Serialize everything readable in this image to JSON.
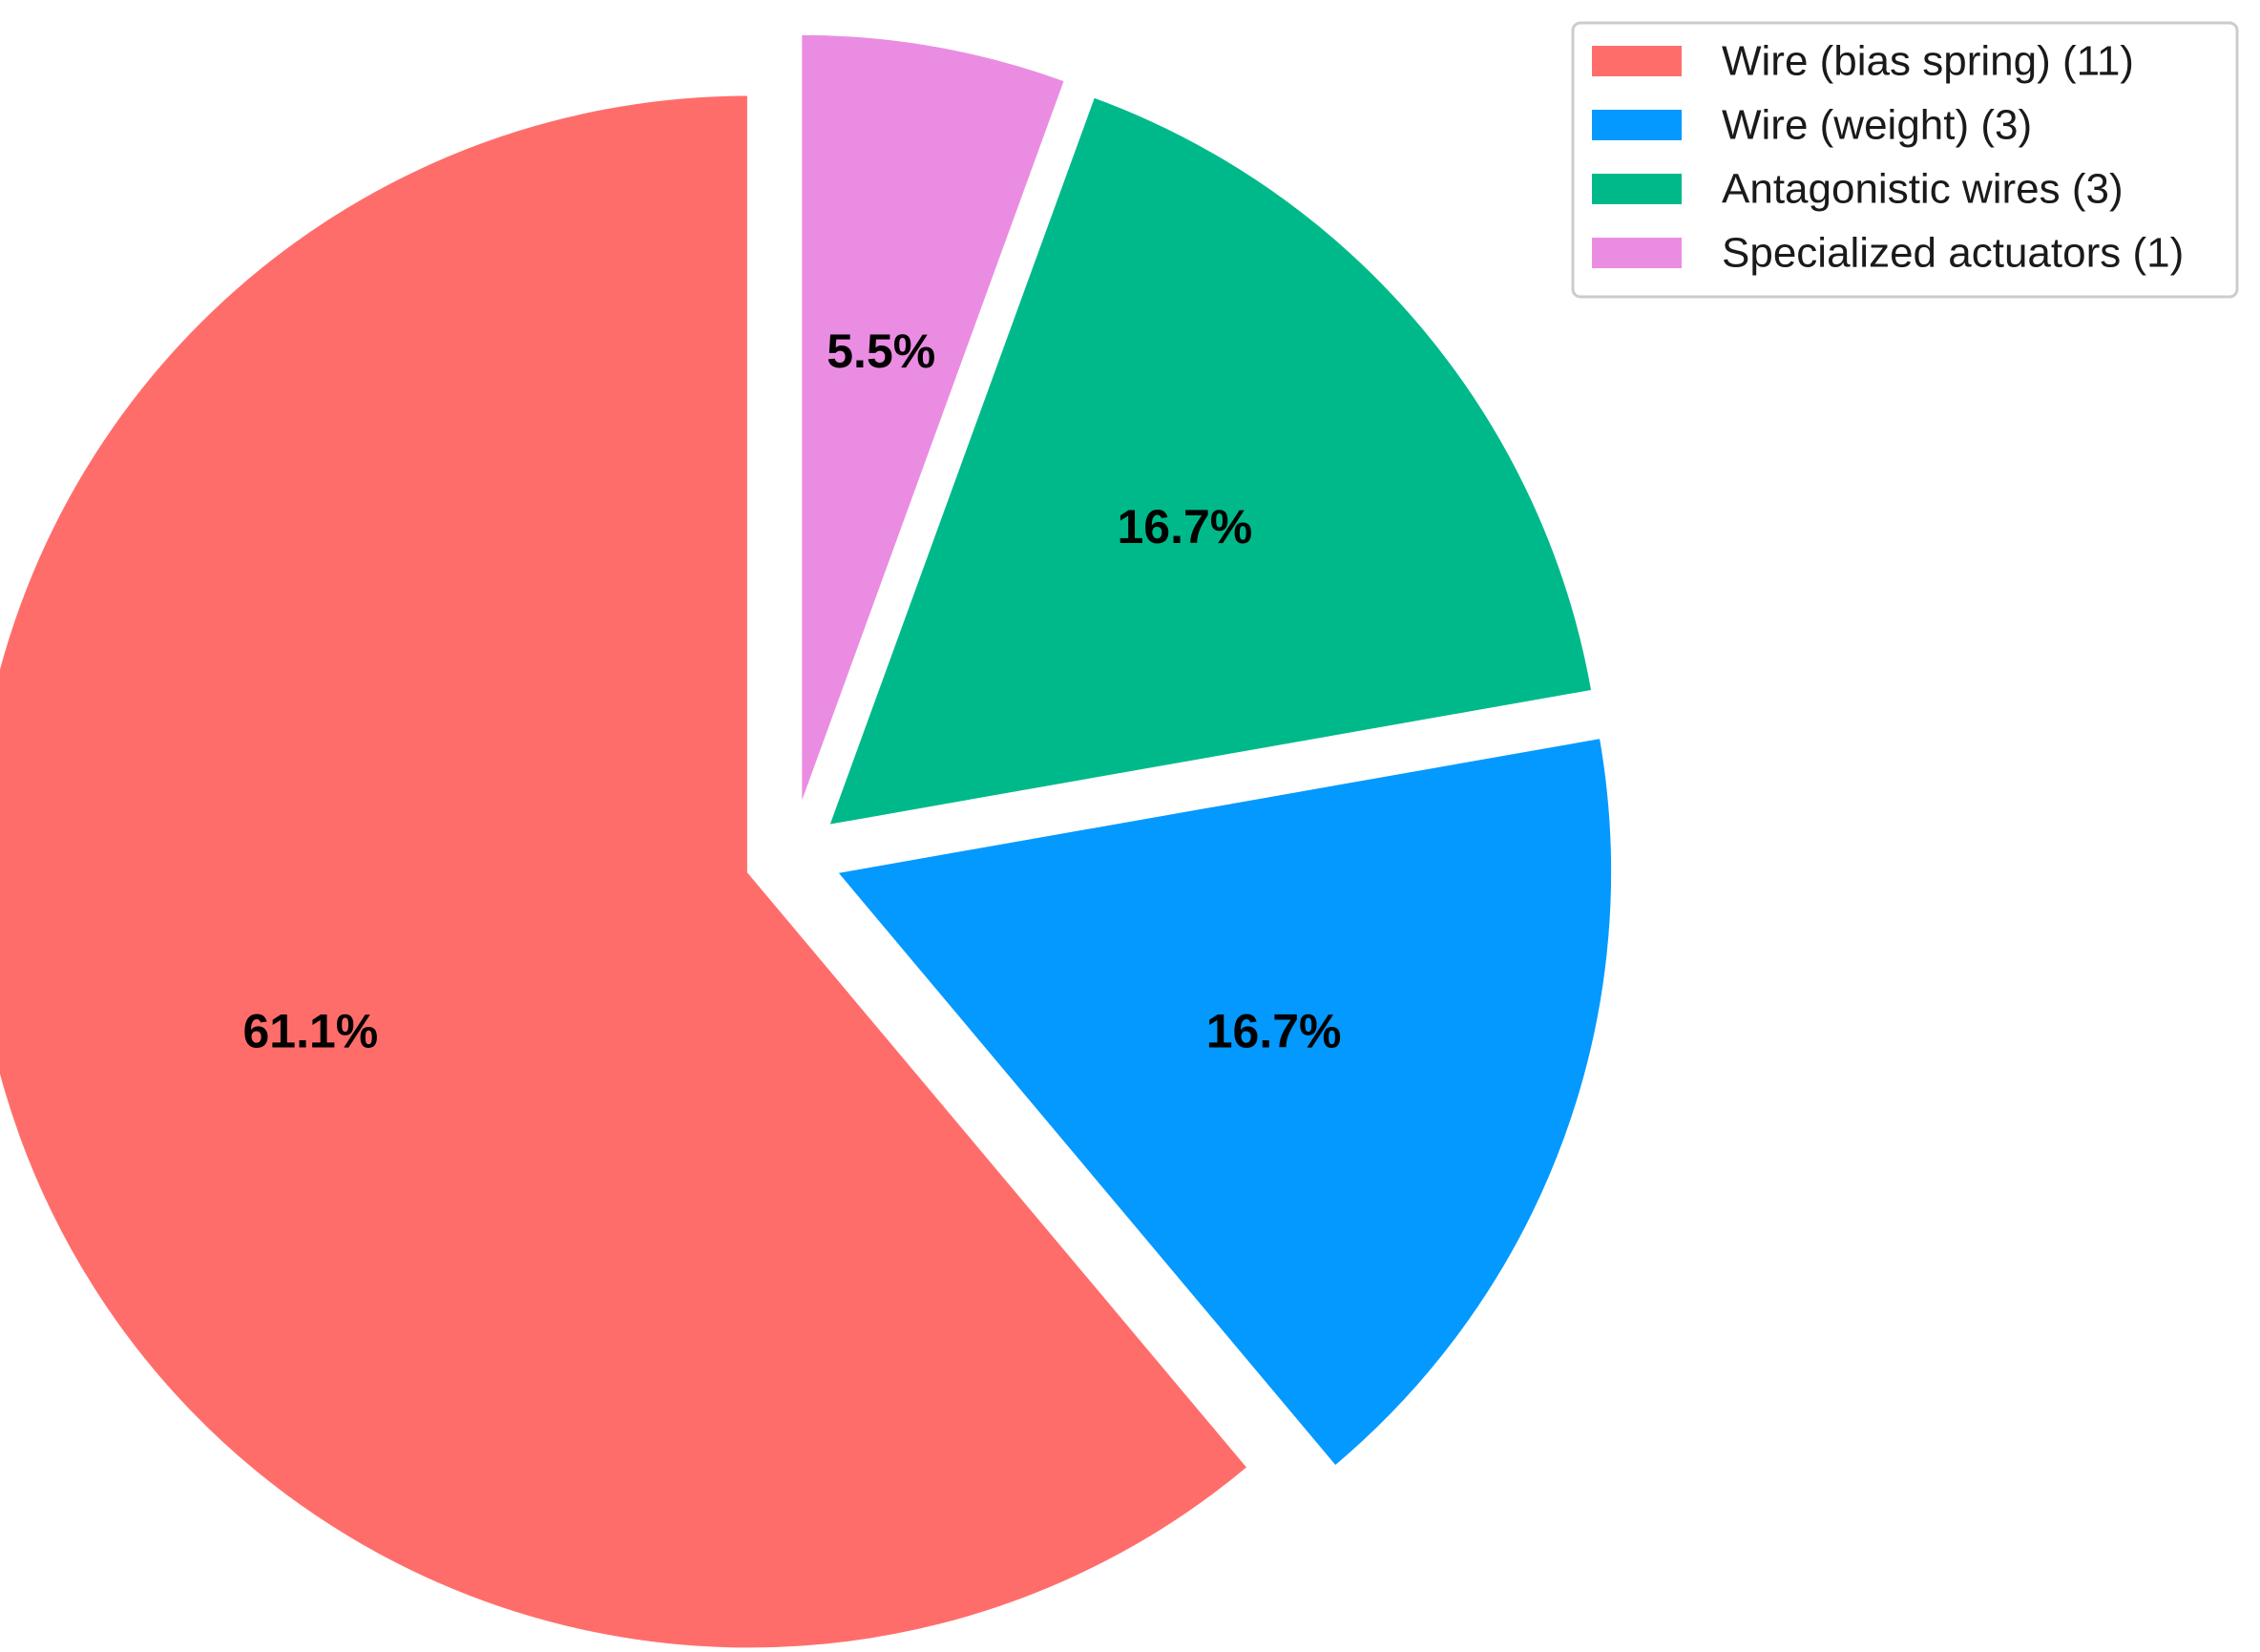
{
  "chart_data": {
    "type": "pie",
    "title": "",
    "start_angle_deg": 90,
    "direction": "clockwise",
    "exploded": true,
    "legend_placement": "top-right",
    "slices": [
      {
        "label": "Specialized actuators (1)",
        "value": 1,
        "percent": 5.5,
        "percent_label": "5.5%",
        "color": "#EA8DE2"
      },
      {
        "label": "Antagonistic wires (3)",
        "value": 3,
        "percent": 16.7,
        "percent_label": "16.7%",
        "color": "#00B98A"
      },
      {
        "label": "Wire (weight) (3)",
        "value": 3,
        "percent": 16.7,
        "percent_label": "16.7%",
        "color": "#0399FF"
      },
      {
        "label": "Wire (bias spring) (11)",
        "value": 11,
        "percent": 61.1,
        "percent_label": "61.1%",
        "color": "#FF6D6B"
      }
    ],
    "legend": [
      {
        "label": "Wire (bias spring) (11)",
        "color": "#FF6D6B"
      },
      {
        "label": "Wire (weight) (3)",
        "color": "#0399FF"
      },
      {
        "label": "Antagonistic wires (3)",
        "color": "#00B98A"
      },
      {
        "label": "Specialized actuators (1)",
        "color": "#EA8DE2"
      }
    ]
  }
}
